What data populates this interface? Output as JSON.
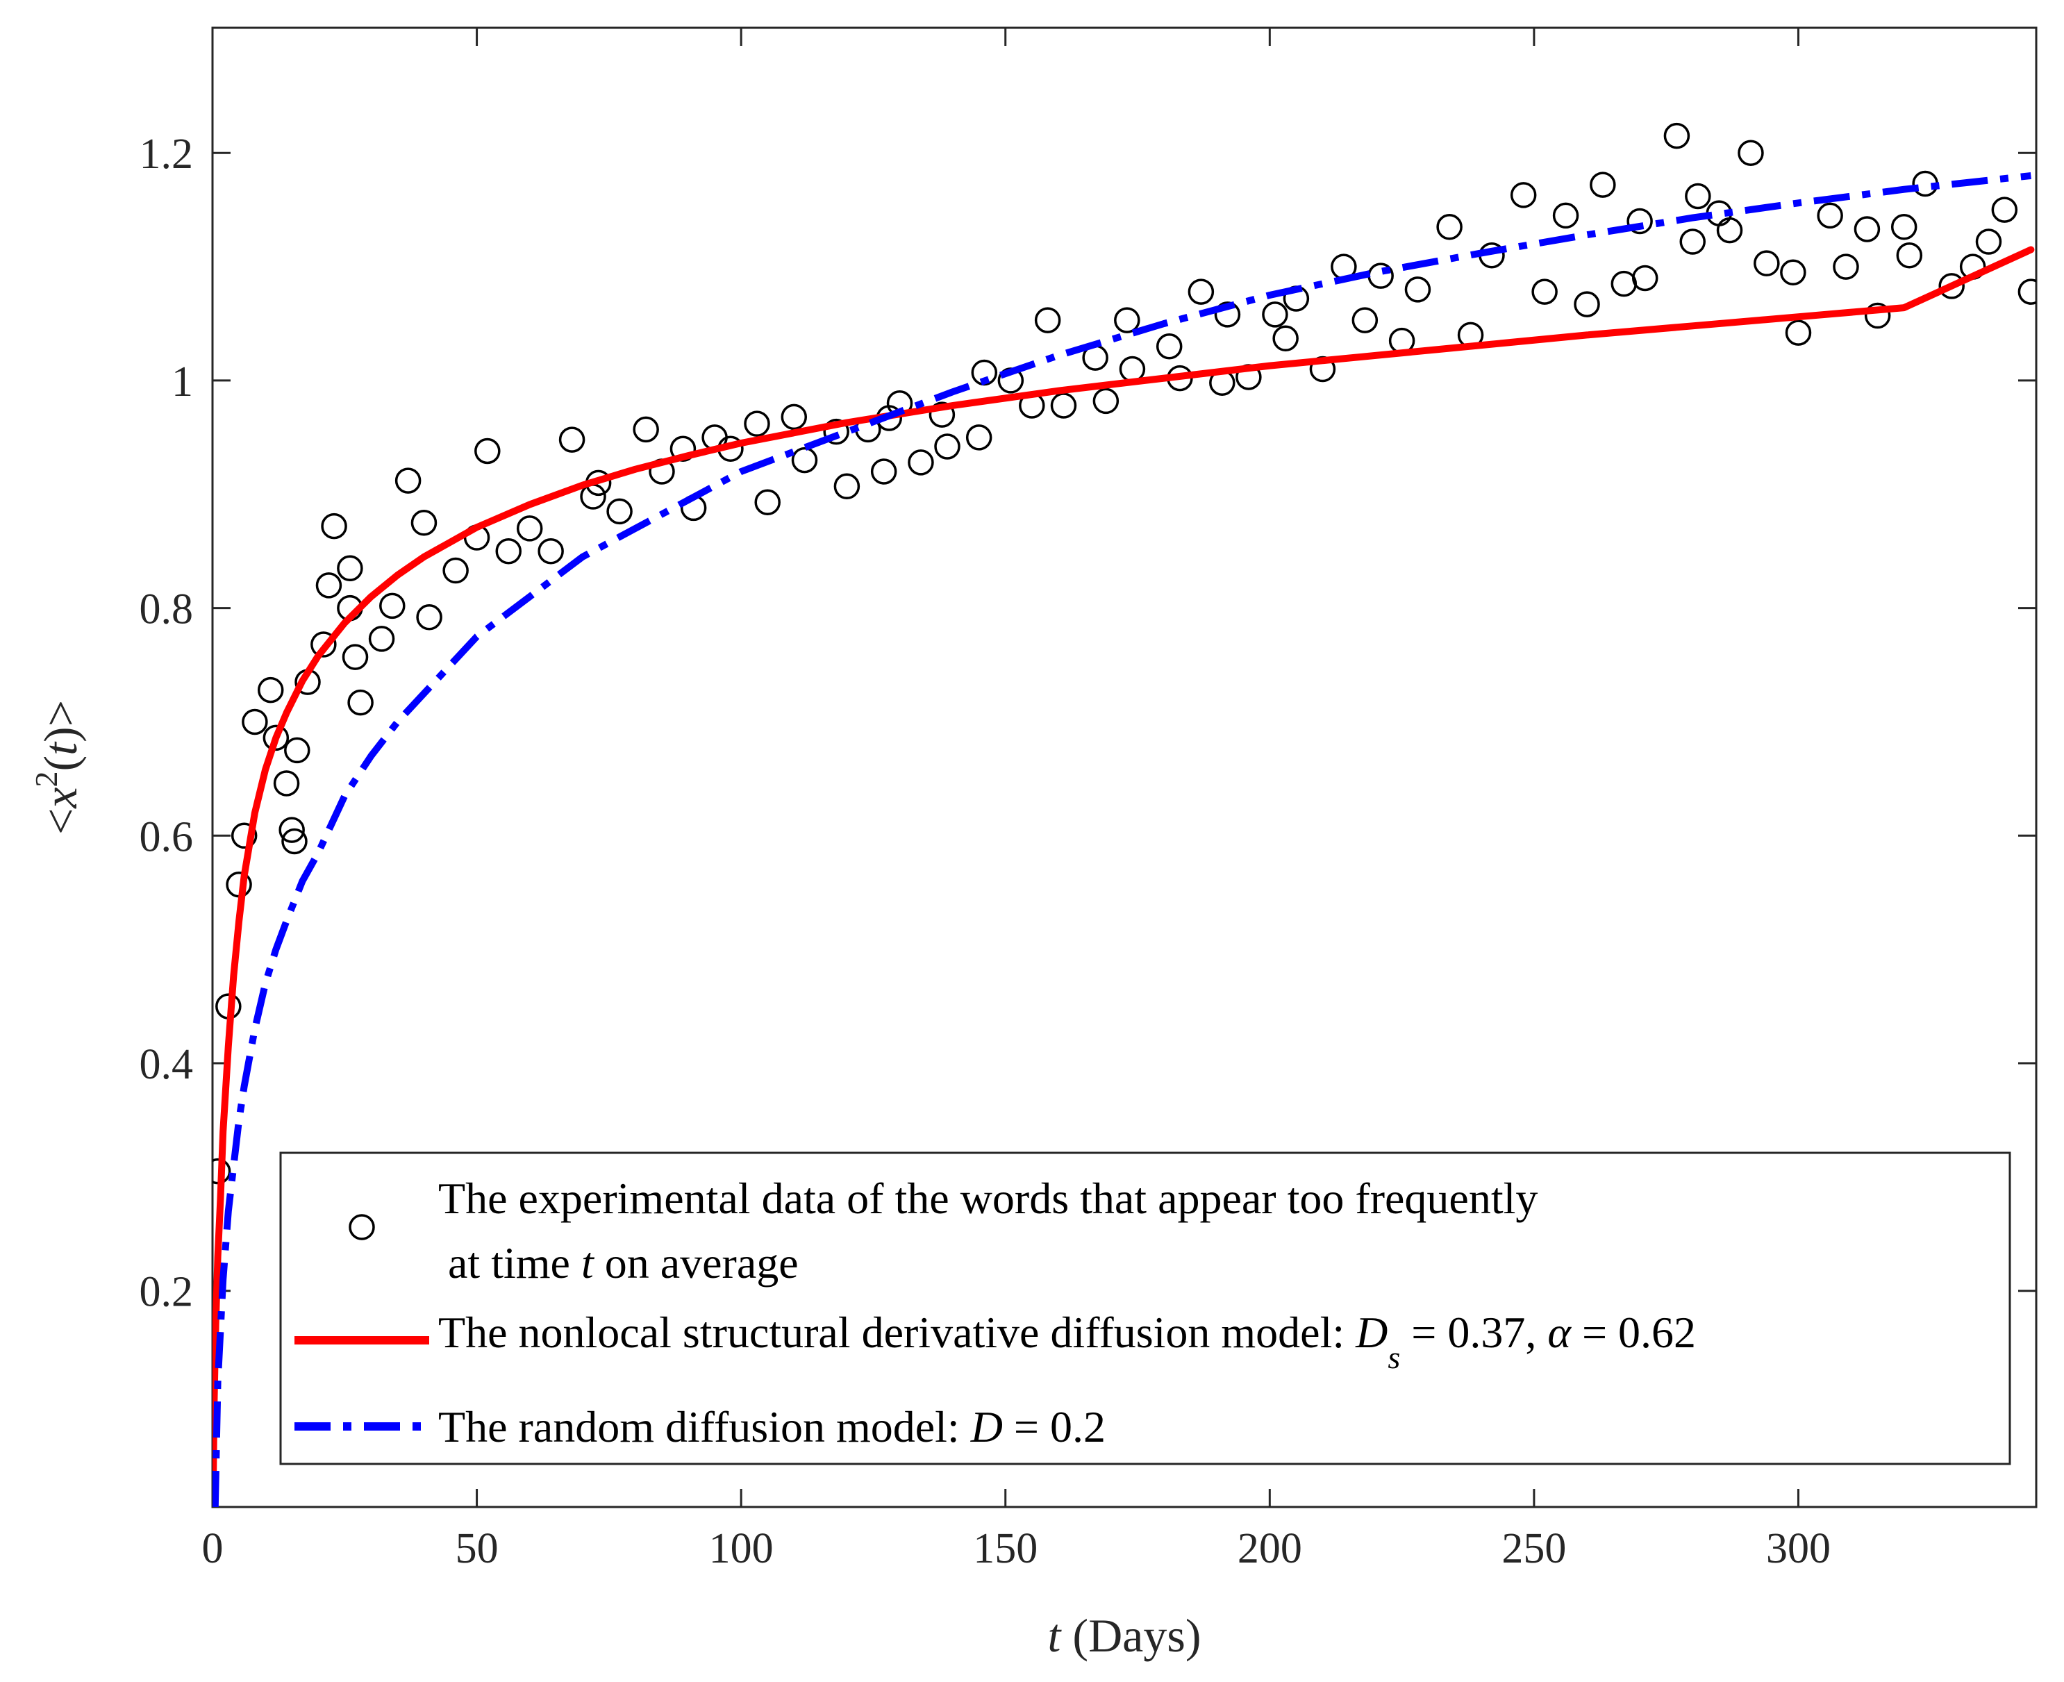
{
  "chart_data": {
    "type": "scatter",
    "title": "",
    "xlabel": {
      "var": "t",
      "rest": " (Days)"
    },
    "ylabel": {
      "lt": "<",
      "var": "x",
      "sup": "2",
      "open": "(",
      "var2": "t",
      "close": ")>"
    },
    "xlim": [
      0,
      345
    ],
    "ylim": [
      0.01,
      1.31
    ],
    "xticks": [
      0,
      50,
      100,
      150,
      200,
      250,
      300
    ],
    "xtick_labels": [
      "0",
      "50",
      "100",
      "150",
      "200",
      "250",
      "300"
    ],
    "yticks": [
      0.2,
      0.4,
      0.6,
      0.8,
      1.0,
      1.2
    ],
    "ytick_labels": [
      "0.2",
      "0.4",
      "0.6",
      "0.8",
      "1",
      "1.2"
    ],
    "grid": false,
    "legend_position": "bottom",
    "series": [
      {
        "name": "The experimental data of the words that appear too frequently at time t on average",
        "kind": "scatter",
        "marker": "circle-open",
        "color": "#000000",
        "points": [
          [
            1,
            0.305
          ],
          [
            3,
            0.45
          ],
          [
            5,
            0.557
          ],
          [
            6,
            0.6
          ],
          [
            8,
            0.7
          ],
          [
            11,
            0.728
          ],
          [
            12,
            0.686
          ],
          [
            14,
            0.646
          ],
          [
            15,
            0.605
          ],
          [
            15.5,
            0.595
          ],
          [
            16,
            0.675
          ],
          [
            18,
            0.735
          ],
          [
            21,
            0.768
          ],
          [
            22,
            0.82
          ],
          [
            23,
            0.872
          ],
          [
            26,
            0.835
          ],
          [
            26,
            0.8
          ],
          [
            27,
            0.757
          ],
          [
            28,
            0.717
          ],
          [
            32,
            0.773
          ],
          [
            34,
            0.802
          ],
          [
            37,
            0.912
          ],
          [
            40,
            0.875
          ],
          [
            41,
            0.792
          ],
          [
            46,
            0.833
          ],
          [
            50,
            0.862
          ],
          [
            52,
            0.938
          ],
          [
            56,
            0.85
          ],
          [
            60,
            0.87
          ],
          [
            64,
            0.85
          ],
          [
            68,
            0.948
          ],
          [
            72,
            0.898
          ],
          [
            73,
            0.91
          ],
          [
            77,
            0.885
          ],
          [
            82,
            0.957
          ],
          [
            85,
            0.92
          ],
          [
            89,
            0.94
          ],
          [
            91,
            0.888
          ],
          [
            95,
            0.95
          ],
          [
            98,
            0.94
          ],
          [
            103,
            0.962
          ],
          [
            105,
            0.893
          ],
          [
            110,
            0.968
          ],
          [
            112,
            0.93
          ],
          [
            118,
            0.955
          ],
          [
            120,
            0.907
          ],
          [
            124,
            0.957
          ],
          [
            127,
            0.92
          ],
          [
            128,
            0.967
          ],
          [
            130,
            0.98
          ],
          [
            134,
            0.928
          ],
          [
            138,
            0.97
          ],
          [
            139,
            0.942
          ],
          [
            145,
            0.95
          ],
          [
            146,
            1.007
          ],
          [
            151,
            1.0
          ],
          [
            155,
            0.978
          ],
          [
            158,
            1.053
          ],
          [
            161,
            0.978
          ],
          [
            167,
            1.02
          ],
          [
            169,
            0.982
          ],
          [
            173,
            1.053
          ],
          [
            174,
            1.01
          ],
          [
            181,
            1.03
          ],
          [
            183,
            1.002
          ],
          [
            187,
            1.078
          ],
          [
            191,
            0.998
          ],
          [
            192,
            1.058
          ],
          [
            196,
            1.003
          ],
          [
            201,
            1.058
          ],
          [
            203,
            1.037
          ],
          [
            205,
            1.072
          ],
          [
            210,
            1.01
          ],
          [
            214,
            1.1
          ],
          [
            218,
            1.053
          ],
          [
            221,
            1.092
          ],
          [
            225,
            1.035
          ],
          [
            228,
            1.08
          ],
          [
            234,
            1.135
          ],
          [
            238,
            1.04
          ],
          [
            242,
            1.11
          ],
          [
            248,
            1.163
          ],
          [
            252,
            1.078
          ],
          [
            256,
            1.145
          ],
          [
            260,
            1.067
          ],
          [
            263,
            1.172
          ],
          [
            267,
            1.085
          ],
          [
            270,
            1.14
          ],
          [
            271,
            1.09
          ],
          [
            277,
            1.215
          ],
          [
            280,
            1.122
          ],
          [
            281,
            1.162
          ],
          [
            285,
            1.147
          ],
          [
            287,
            1.132
          ],
          [
            291,
            1.2
          ],
          [
            294,
            1.103
          ],
          [
            299,
            1.095
          ],
          [
            300,
            1.042
          ],
          [
            306,
            1.145
          ],
          [
            309,
            1.1
          ],
          [
            313,
            1.133
          ],
          [
            315,
            1.057
          ],
          [
            320,
            1.135
          ],
          [
            321,
            1.11
          ],
          [
            324,
            1.173
          ],
          [
            329,
            1.083
          ],
          [
            333,
            1.1
          ],
          [
            336,
            1.122
          ],
          [
            339,
            1.15
          ],
          [
            344,
            1.078
          ]
        ]
      },
      {
        "name": "The nonlocal structural derivative diffusion model",
        "kind": "line",
        "style": "solid",
        "color": "#ff0000",
        "params": {
          "Ds": 0.37,
          "alpha": 0.62
        },
        "x": [
          0.1,
          0.3,
          0.6,
          1,
          1.5,
          2,
          3,
          4,
          5,
          6,
          8,
          10,
          12,
          14,
          17,
          20,
          25,
          30,
          35,
          40,
          50,
          60,
          70,
          80,
          90,
          100,
          120,
          140,
          160,
          180,
          200,
          220,
          240,
          260,
          280,
          300,
          320,
          344
        ],
        "y": [
          0.02,
          0.1,
          0.17,
          0.23,
          0.28,
          0.34,
          0.415,
          0.477,
          0.525,
          0.565,
          0.62,
          0.658,
          0.686,
          0.708,
          0.736,
          0.758,
          0.787,
          0.81,
          0.829,
          0.845,
          0.871,
          0.891,
          0.908,
          0.922,
          0.934,
          0.945,
          0.963,
          0.978,
          0.991,
          1.002,
          1.013,
          1.022,
          1.031,
          1.04,
          1.048,
          1.056,
          1.064,
          1.115
        ]
      },
      {
        "name": "The random diffusion model",
        "kind": "line",
        "style": "dashdot",
        "color": "#0000ff",
        "params": {
          "D": 0.2
        },
        "x": [
          0.5,
          1,
          2,
          3,
          4,
          5,
          6,
          8,
          10,
          12,
          14,
          17,
          20,
          25,
          30,
          35,
          40,
          50,
          60,
          70,
          80,
          90,
          100,
          120,
          140,
          160,
          180,
          200,
          220,
          240,
          260,
          280,
          300,
          320,
          344
        ],
        "y": [
          0.01,
          0.12,
          0.21,
          0.27,
          0.31,
          0.35,
          0.38,
          0.43,
          0.47,
          0.5,
          0.525,
          0.56,
          0.585,
          0.635,
          0.67,
          0.7,
          0.725,
          0.775,
          0.81,
          0.845,
          0.87,
          0.895,
          0.92,
          0.955,
          0.99,
          1.022,
          1.05,
          1.075,
          1.095,
          1.112,
          1.128,
          1.143,
          1.156,
          1.168,
          1.18
        ]
      }
    ]
  },
  "legend": {
    "entries": [
      {
        "line1": "The experimental data of the words that appear too frequently",
        "line2_a": "at time ",
        "line2_var": "t",
        "line2_b": " on average"
      },
      {
        "text_a": "The nonlocal structural derivative diffusion model: ",
        "ds_var": "D",
        "ds_sub": "s",
        "ds_val": " = 0.37, ",
        "alpha_sym": "α",
        "alpha_val": " = 0.62"
      },
      {
        "text_a": "The random diffusion model: ",
        "d_var": "D",
        "d_val": " = 0.2"
      }
    ]
  }
}
